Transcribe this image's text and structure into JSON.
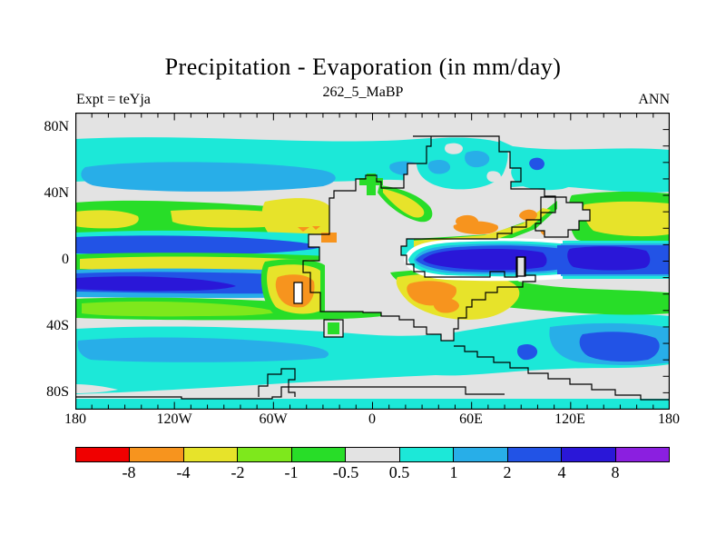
{
  "header": {
    "title": "Precipitation - Evaporation (in mm/day)",
    "subtitle": "262_5_MaBP",
    "experiment_label": "Expt = teYja",
    "season_label": "ANN"
  },
  "axes": {
    "lat_labels": [
      "80N",
      "40N",
      "0",
      "40S",
      "80S"
    ],
    "lon_labels": [
      "180",
      "120W",
      "60W",
      "0",
      "60E",
      "120E",
      "180"
    ]
  },
  "colorbar": {
    "tick_labels": [
      "-8",
      "-4",
      "-2",
      "-1",
      "-0.5",
      "0.5",
      "1",
      "2",
      "4",
      "8"
    ],
    "colors": [
      "#f00000",
      "#f7941e",
      "#e7e32a",
      "#7ee81c",
      "#28dd28",
      "#e3e3e3",
      "#1ce8d8",
      "#28aee8",
      "#2253e6",
      "#2a17d8",
      "#8b1fe0"
    ],
    "white": "#ffffff"
  },
  "chart_data": {
    "type": "heatmap",
    "subtype": "filled-contour world map",
    "title": "Precipitation - Evaporation (in mm/day)",
    "experiment": "teYja",
    "time_slice": "262_5_MaBP",
    "season": "ANN",
    "units": "mm/day",
    "lon_range": [
      -180,
      180
    ],
    "lat_range": [
      -90,
      90
    ],
    "lon_ticks_deg": 10,
    "lat_ticks_deg": 10,
    "contour_levels": [
      -8,
      -4,
      -2,
      -1,
      -0.5,
      0.5,
      1,
      2,
      4,
      8
    ],
    "palette_order": "red(<-8), orange, yellow, yellow-green, green, neutral-gray(-0.5..0.5), cyan, sky-blue, blue, dark-blue, purple(>8)",
    "features": [
      "Supercontinent (Pangea-like) coastline outlined in black, interior mostly neutral gray, centered 0-70E spanning pole to pole",
      "Northern-hemisphere cyan band (P-E 0.5..1) along 50-70N across entire map with sky-blue core (1..2) over western ocean",
      "Neutral gray band 30-45N",
      "Green/yellow negative band (-1..-2) around 15-30N over western ocean reaching the west coast",
      "Cyan-blue positive band with blue core just north of equator over western ocean",
      "Yellow negative band (-2) centered on equator over western ocean",
      "Sky/blue/dark-blue positive band just south of equator over western ocean",
      "Green negative band 15-25S over western ocean",
      "Southern cyan band 45-70S circumglobal with sky-blue core in west and blue core in southeast",
      "Deep blue/dark-blue Tethys equatorial gyre (2..8) east of 40E extending to map edge, ringed by white and cyan",
      "Yellow/orange strongly negative bands hugging the NE and SE Tethys coasts and the southwest coast (with small lake rectangle)",
      "Cyan patches (0.5..2) over northern polar land, green belt across southeastern land",
      "Thin cyan strip along the southern map edge below stepped polar coastline"
    ]
  }
}
